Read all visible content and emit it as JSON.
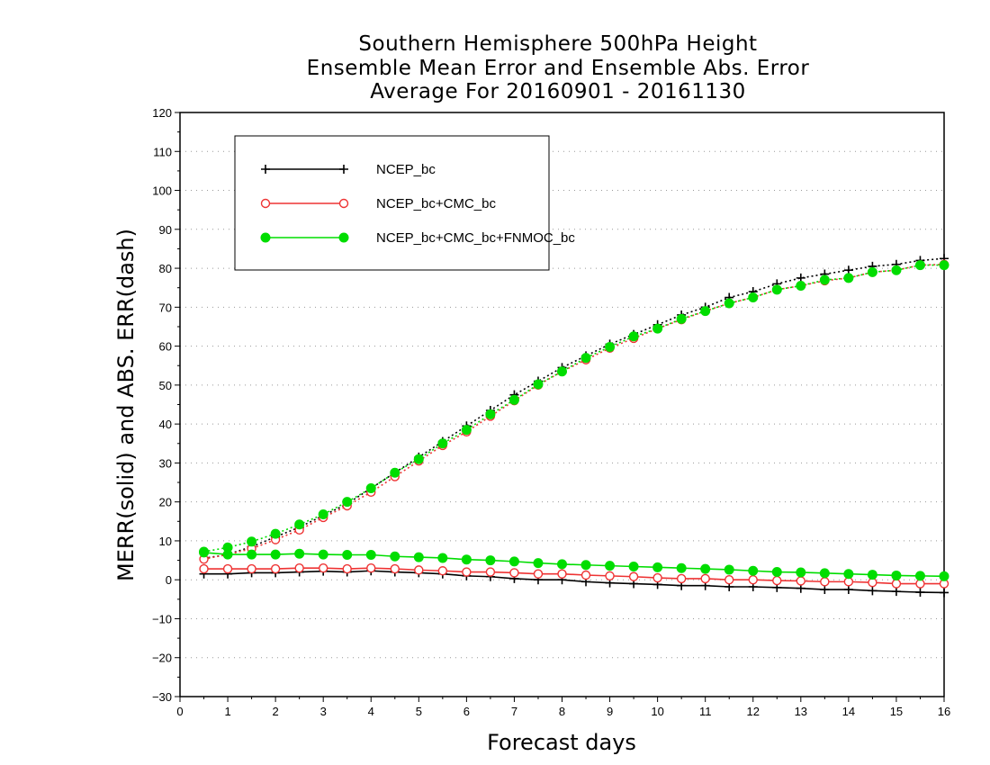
{
  "chart_data": {
    "type": "line",
    "title_lines": [
      "Southern Hemisphere 500hPa Height",
      "Ensemble Mean Error and Ensemble Abs. Error",
      "Average For 20160901 - 20161130"
    ],
    "xlabel": "Forecast days",
    "ylabel": "MERR(solid) and ABS. ERR(dash)",
    "xlim": [
      0,
      16
    ],
    "ylim": [
      -30,
      120
    ],
    "x_ticks": [
      0,
      1,
      2,
      3,
      4,
      5,
      6,
      7,
      8,
      9,
      10,
      11,
      12,
      13,
      14,
      15,
      16
    ],
    "y_ticks": [
      -30,
      -20,
      -10,
      0,
      10,
      20,
      30,
      40,
      50,
      60,
      70,
      80,
      90,
      100,
      110,
      120
    ],
    "grid": "horizontal dotted",
    "legend_position": "top-left",
    "x": [
      0.5,
      1,
      1.5,
      2,
      2.5,
      3,
      3.5,
      4,
      4.5,
      5,
      5.5,
      6,
      6.5,
      7,
      7.5,
      8,
      8.5,
      9,
      9.5,
      10,
      10.5,
      11,
      11.5,
      12,
      12.5,
      13,
      13.5,
      14,
      14.5,
      15,
      15.5,
      16
    ],
    "series": [
      {
        "name": "NCEP_bc",
        "color": "#000000",
        "marker": "plus",
        "merr": [
          1.5,
          1.5,
          1.8,
          1.8,
          2.0,
          2.2,
          2.0,
          2.3,
          2.0,
          1.8,
          1.5,
          1.0,
          0.8,
          0.3,
          0.0,
          0.0,
          -0.5,
          -0.8,
          -1.0,
          -1.2,
          -1.5,
          -1.5,
          -1.8,
          -1.8,
          -2.0,
          -2.2,
          -2.5,
          -2.5,
          -2.8,
          -3.0,
          -3.2,
          -3.3
        ],
        "abs_err": [
          5.5,
          6.5,
          8.5,
          11.0,
          13.5,
          16.5,
          19.5,
          23.5,
          27.5,
          31.5,
          35.5,
          39.5,
          43.5,
          47.5,
          51.0,
          54.5,
          57.5,
          60.5,
          63.0,
          65.5,
          68.0,
          70.0,
          72.5,
          74.0,
          76.0,
          77.5,
          78.5,
          79.5,
          80.5,
          81.0,
          82.0,
          82.5
        ]
      },
      {
        "name": "NCEP_bc+CMC_bc",
        "color": "#ee3333",
        "marker": "open-circle",
        "merr": [
          2.8,
          2.8,
          2.8,
          2.8,
          3.0,
          3.0,
          2.8,
          3.0,
          2.8,
          2.5,
          2.3,
          2.0,
          2.0,
          1.8,
          1.5,
          1.5,
          1.2,
          1.0,
          0.8,
          0.5,
          0.3,
          0.3,
          0.0,
          0.0,
          -0.2,
          -0.3,
          -0.5,
          -0.5,
          -0.7,
          -1.0,
          -1.0,
          -1.0
        ],
        "abs_err": [
          5.3,
          6.5,
          8.0,
          10.3,
          12.8,
          16.0,
          19.0,
          22.5,
          26.5,
          30.5,
          34.5,
          38.0,
          42.0,
          46.0,
          50.0,
          53.5,
          56.5,
          59.5,
          62.0,
          64.5,
          66.8,
          69.0,
          71.0,
          72.5,
          74.5,
          75.5,
          76.8,
          77.5,
          79.0,
          79.5,
          80.8,
          81.0
        ]
      },
      {
        "name": "NCEP_bc+CMC_bc+FNMOC_bc",
        "color": "#00dd00",
        "marker": "filled-circle",
        "merr": [
          7.0,
          6.5,
          6.5,
          6.5,
          6.7,
          6.5,
          6.4,
          6.4,
          6.0,
          5.8,
          5.6,
          5.2,
          5.0,
          4.7,
          4.3,
          4.0,
          3.8,
          3.6,
          3.4,
          3.2,
          3.0,
          2.8,
          2.6,
          2.3,
          2.0,
          1.9,
          1.7,
          1.5,
          1.3,
          1.1,
          1.0,
          0.9
        ],
        "abs_err": [
          7.2,
          8.3,
          9.8,
          11.8,
          14.2,
          16.8,
          20.0,
          23.5,
          27.5,
          31.0,
          35.0,
          38.5,
          42.5,
          46.2,
          50.2,
          53.5,
          57.0,
          59.8,
          62.5,
          64.5,
          67.0,
          69.0,
          71.0,
          72.5,
          74.5,
          75.5,
          77.0,
          77.5,
          79.0,
          79.5,
          80.8,
          80.8
        ]
      }
    ]
  }
}
